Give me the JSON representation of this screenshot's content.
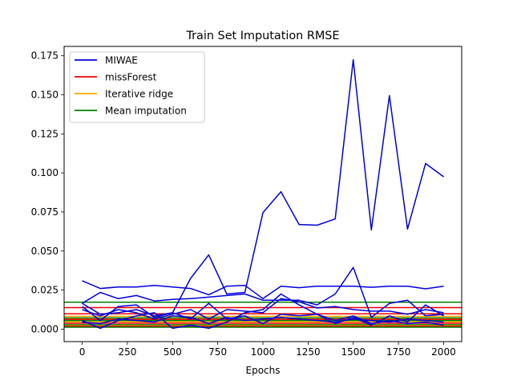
{
  "chart_data": {
    "type": "line",
    "title": "Train Set Imputation RMSE",
    "xlabel": "Epochs",
    "ylabel": "",
    "xlim": [
      -100,
      2100
    ],
    "ylim": [
      -0.008,
      0.181
    ],
    "xticks": [
      0,
      250,
      500,
      750,
      1000,
      1250,
      1500,
      1750,
      2000
    ],
    "xtick_labels": [
      "0",
      "250",
      "500",
      "750",
      "1000",
      "1250",
      "1500",
      "1750",
      "2000"
    ],
    "yticks": [
      0.0,
      0.025,
      0.05,
      0.075,
      0.1,
      0.125,
      0.15,
      0.175
    ],
    "ytick_labels": [
      "0.000",
      "0.025",
      "0.050",
      "0.075",
      "0.100",
      "0.125",
      "0.150",
      "0.175"
    ],
    "grid": false,
    "legend_position": "upper-left",
    "legend": [
      {
        "label": "MIWAE",
        "color": "#0000dd"
      },
      {
        "label": "missForest",
        "color": "#ee0000"
      },
      {
        "label": "Iterative ridge",
        "color": "#ffa500"
      },
      {
        "label": "Mean imputation",
        "color": "#008000"
      }
    ],
    "x": [
      0,
      100,
      200,
      300,
      400,
      500,
      600,
      700,
      800,
      900,
      1000,
      1100,
      1200,
      1300,
      1400,
      1500,
      1600,
      1700,
      1800,
      1900,
      2000
    ],
    "series": [
      {
        "group": "MIWAE",
        "color": "#0000dd",
        "values": [
          0.031,
          0.026,
          0.027,
          0.027,
          0.028,
          0.027,
          0.026,
          0.022,
          0.0275,
          0.028,
          0.0195,
          0.0275,
          0.0265,
          0.0275,
          0.0275,
          0.0275,
          0.0268,
          0.0275,
          0.0275,
          0.0258,
          0.0275
        ]
      },
      {
        "group": "MIWAE",
        "color": "#0000dd",
        "values": [
          0.0165,
          0.0095,
          0.0105,
          0.0125,
          0.0085,
          0.0105,
          0.0325,
          0.0475,
          0.0225,
          0.0235,
          0.0745,
          0.088,
          0.067,
          0.0665,
          0.0705,
          0.1725,
          0.0635,
          0.1495,
          0.064,
          0.106,
          0.0975
        ]
      },
      {
        "group": "MIWAE",
        "color": "#0000dd",
        "values": [
          0.0165,
          0.0235,
          0.0195,
          0.0215,
          0.018,
          0.019,
          0.0195,
          0.0205,
          0.0215,
          0.0225,
          0.0185,
          0.0185,
          0.0185,
          0.0155,
          0.0225,
          0.0395,
          0.0075,
          0.0165,
          0.0185,
          0.0085,
          0.0095
        ]
      },
      {
        "group": "MIWAE",
        "color": "#0000dd",
        "values": [
          0.0145,
          0.0055,
          0.0145,
          0.0155,
          0.0075,
          0.0105,
          0.0065,
          0.0165,
          0.0065,
          0.0085,
          0.0035,
          0.0095,
          0.0085,
          0.0095,
          0.0035,
          0.0075,
          0.0025,
          0.0085,
          0.0045,
          0.0155,
          0.0085
        ]
      },
      {
        "group": "MIWAE",
        "color": "#0000dd",
        "values": [
          0.0055,
          0.0005,
          0.0055,
          0.0085,
          0.0105,
          0.0005,
          0.0025,
          0.0005,
          0.0045,
          0.0105,
          0.0125,
          0.0225,
          0.0155,
          0.0095,
          0.0055,
          0.0085,
          0.0035,
          0.0055,
          0.0035,
          0.0045,
          0.0025
        ]
      },
      {
        "group": "MIWAE",
        "color": "#0000dd",
        "values": [
          0.0125,
          0.0085,
          0.0125,
          0.0105,
          0.0065,
          0.0095,
          0.0125,
          0.0065,
          0.0125,
          0.0115,
          0.0105,
          0.0195,
          0.0175,
          0.0135,
          0.0145,
          0.0125,
          0.0115,
          0.0115,
          0.0095,
          0.0125,
          0.0105
        ]
      },
      {
        "group": "MIWAE",
        "color": "#0000dd",
        "values": [
          0.0045,
          0.0035,
          0.0065,
          0.0055,
          0.0045,
          0.0085,
          0.0075,
          0.0035,
          0.0075,
          0.0055,
          0.0065,
          0.0075,
          0.0065,
          0.0055,
          0.0045,
          0.0065,
          0.0055,
          0.0045,
          0.0065,
          0.0055,
          0.0045
        ]
      }
    ],
    "hlines": [
      {
        "group": "Mean imputation",
        "color": "#008000",
        "y": 0.0172
      },
      {
        "group": "missForest",
        "color": "#ee0000",
        "y": 0.0138
      },
      {
        "group": "missForest",
        "color": "#ee0000",
        "y": 0.0098
      },
      {
        "group": "Iterative ridge",
        "color": "#ffa500",
        "y": 0.0082
      },
      {
        "group": "Mean imputation",
        "color": "#008000",
        "y": 0.0072
      },
      {
        "group": "Iterative ridge",
        "color": "#ffa500",
        "y": 0.0065
      },
      {
        "group": "missForest",
        "color": "#ee0000",
        "y": 0.0062
      },
      {
        "group": "Mean imputation",
        "color": "#008000",
        "y": 0.0055
      },
      {
        "group": "Iterative ridge",
        "color": "#ffa500",
        "y": 0.0047
      },
      {
        "group": "missForest",
        "color": "#ee0000",
        "y": 0.0038
      },
      {
        "group": "Mean imputation",
        "color": "#008000",
        "y": 0.0028
      },
      {
        "group": "Iterative ridge",
        "color": "#ffa500",
        "y": 0.0022
      },
      {
        "group": "missForest",
        "color": "#ee0000",
        "y": 0.0018
      },
      {
        "group": "Mean imputation",
        "color": "#008000",
        "y": 0.0012
      }
    ]
  }
}
